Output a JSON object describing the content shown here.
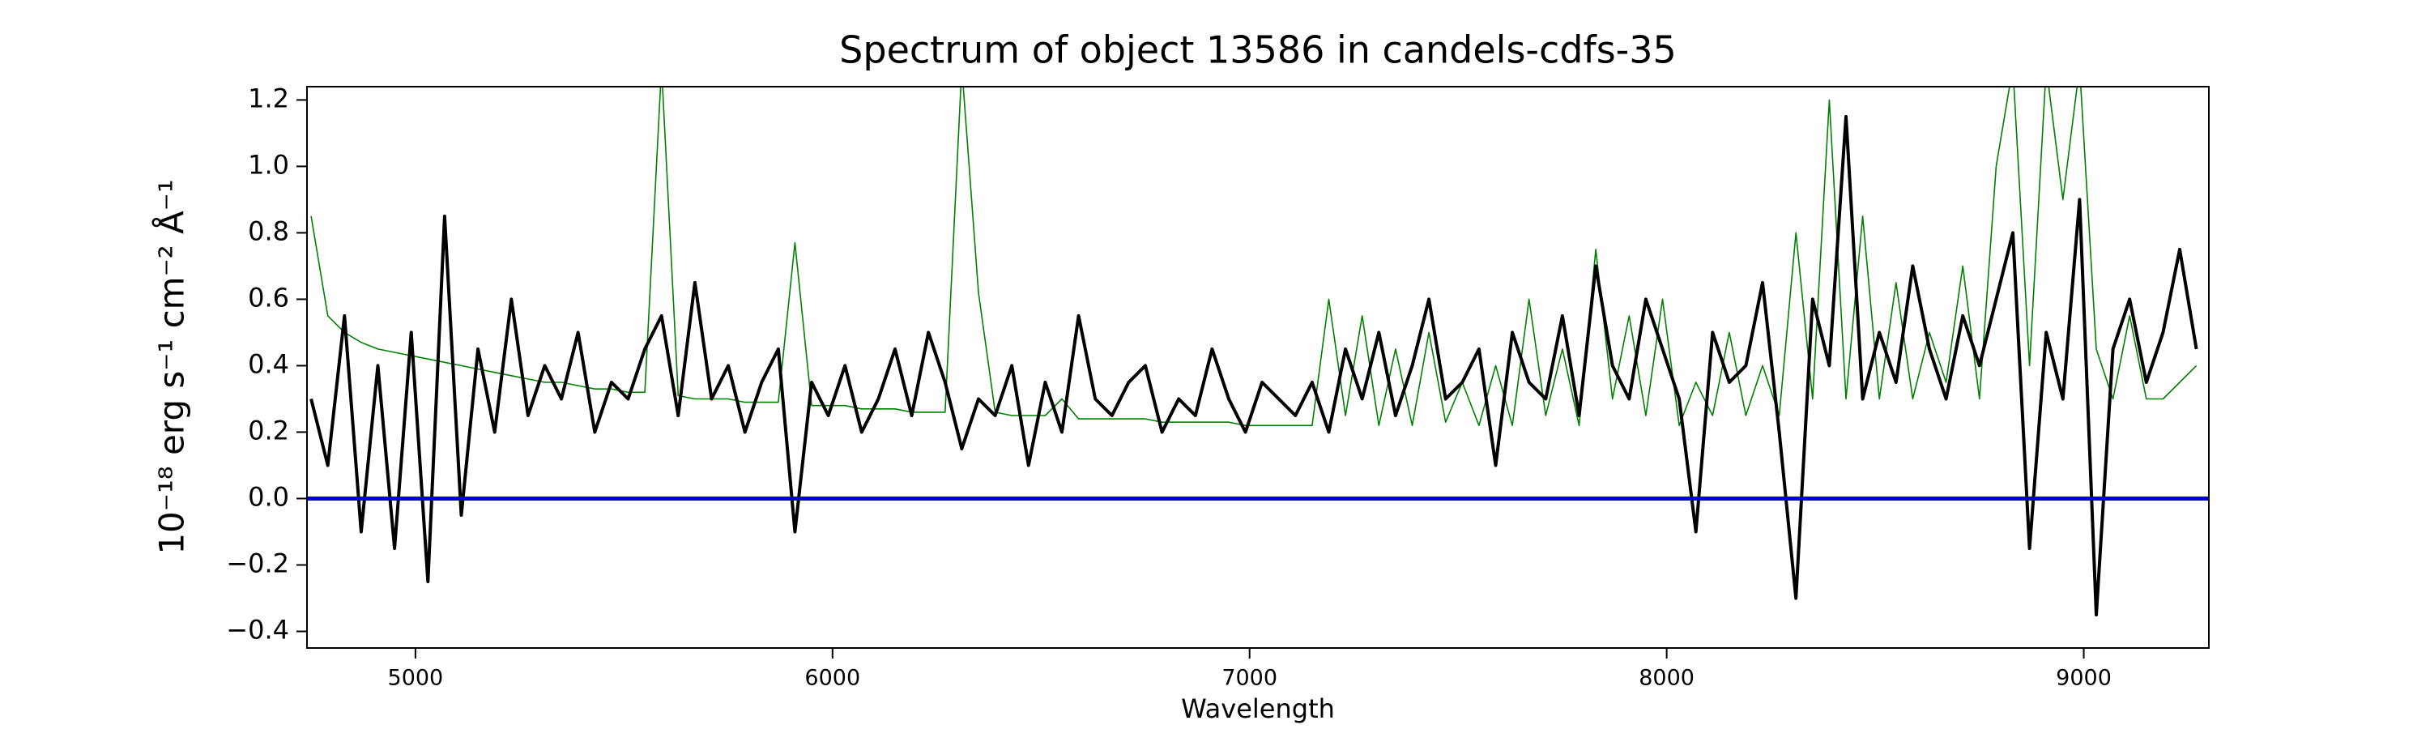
{
  "chart_data": {
    "type": "line",
    "title": "Spectrum of object 13586 in candels-cdfs-35",
    "xlabel": "Wavelength",
    "ylabel": "10⁻¹⁸ erg s⁻¹ cm⁻² Å⁻¹",
    "x": [
      4750,
      4790,
      4830,
      4870,
      4910,
      4950,
      4990,
      5030,
      5070,
      5110,
      5150,
      5190,
      5230,
      5270,
      5310,
      5350,
      5390,
      5430,
      5470,
      5510,
      5550,
      5590,
      5630,
      5670,
      5710,
      5750,
      5790,
      5830,
      5870,
      5910,
      5950,
      5990,
      6030,
      6070,
      6110,
      6150,
      6190,
      6230,
      6270,
      6310,
      6350,
      6390,
      6430,
      6470,
      6510,
      6550,
      6590,
      6630,
      6670,
      6710,
      6750,
      6790,
      6830,
      6870,
      6910,
      6950,
      6990,
      7030,
      7070,
      7110,
      7150,
      7190,
      7230,
      7270,
      7310,
      7350,
      7390,
      7430,
      7470,
      7510,
      7550,
      7590,
      7630,
      7670,
      7710,
      7750,
      7790,
      7830,
      7870,
      7910,
      7950,
      7990,
      8030,
      8070,
      8110,
      8150,
      8190,
      8230,
      8270,
      8310,
      8350,
      8390,
      8430,
      8470,
      8510,
      8550,
      8590,
      8630,
      8670,
      8710,
      8750,
      8790,
      8830,
      8870,
      8910,
      8950,
      8990,
      9030,
      9070,
      9110,
      9150,
      9190,
      9230,
      9270
    ],
    "series": [
      {
        "color": "#008000",
        "values": [
          0.85,
          0.55,
          0.5,
          0.47,
          0.45,
          0.44,
          0.43,
          0.42,
          0.41,
          0.4,
          0.39,
          0.38,
          0.37,
          0.36,
          0.35,
          0.35,
          0.34,
          0.33,
          0.33,
          0.32,
          0.32,
          1.3,
          0.31,
          0.3,
          0.3,
          0.3,
          0.29,
          0.29,
          0.29,
          0.77,
          0.28,
          0.28,
          0.28,
          0.27,
          0.27,
          0.27,
          0.26,
          0.26,
          0.26,
          1.3,
          0.62,
          0.26,
          0.25,
          0.25,
          0.25,
          0.3,
          0.24,
          0.24,
          0.24,
          0.24,
          0.24,
          0.23,
          0.23,
          0.23,
          0.23,
          0.23,
          0.22,
          0.22,
          0.22,
          0.22,
          0.22,
          0.6,
          0.25,
          0.55,
          0.22,
          0.45,
          0.22,
          0.5,
          0.23,
          0.35,
          0.22,
          0.4,
          0.22,
          0.6,
          0.25,
          0.45,
          0.22,
          0.75,
          0.3,
          0.55,
          0.25,
          0.6,
          0.22,
          0.35,
          0.25,
          0.5,
          0.25,
          0.4,
          0.25,
          0.8,
          0.3,
          1.2,
          0.3,
          0.85,
          0.3,
          0.65,
          0.3,
          0.5,
          0.35,
          0.7,
          0.3,
          1.0,
          1.3,
          0.4,
          1.3,
          0.9,
          1.3,
          0.45,
          0.3,
          0.55,
          0.3,
          0.3,
          0.35,
          0.4
        ]
      },
      {
        "color": "#000000",
        "values": [
          0.3,
          0.1,
          0.55,
          -0.1,
          0.4,
          -0.15,
          0.5,
          -0.25,
          0.85,
          -0.05,
          0.45,
          0.2,
          0.6,
          0.25,
          0.4,
          0.3,
          0.5,
          0.2,
          0.35,
          0.3,
          0.45,
          0.55,
          0.25,
          0.65,
          0.3,
          0.4,
          0.2,
          0.35,
          0.45,
          -0.1,
          0.35,
          0.25,
          0.4,
          0.2,
          0.3,
          0.45,
          0.25,
          0.5,
          0.35,
          0.15,
          0.3,
          0.25,
          0.4,
          0.1,
          0.35,
          0.2,
          0.55,
          0.3,
          0.25,
          0.35,
          0.4,
          0.2,
          0.3,
          0.25,
          0.45,
          0.3,
          0.2,
          0.35,
          0.3,
          0.25,
          0.35,
          0.2,
          0.45,
          0.3,
          0.5,
          0.25,
          0.4,
          0.6,
          0.3,
          0.35,
          0.45,
          0.1,
          0.5,
          0.35,
          0.3,
          0.55,
          0.25,
          0.7,
          0.4,
          0.3,
          0.6,
          0.45,
          0.3,
          -0.1,
          0.5,
          0.35,
          0.4,
          0.65,
          0.2,
          -0.3,
          0.6,
          0.4,
          1.15,
          0.3,
          0.5,
          0.35,
          0.7,
          0.45,
          0.3,
          0.55,
          0.4,
          0.6,
          0.8,
          -0.15,
          0.5,
          0.3,
          0.9,
          -0.35,
          0.45,
          0.6,
          0.35,
          0.5,
          0.75,
          0.45
        ]
      }
    ],
    "hline": {
      "value": 0,
      "color": "#0000cc"
    },
    "xlim": [
      4740,
      9300
    ],
    "xticks": [
      5000,
      6000,
      7000,
      8000,
      9000
    ],
    "ylim": [
      -0.45,
      1.24
    ],
    "yticks": [
      {
        "value": -0.4,
        "label": "−0.4"
      },
      {
        "value": -0.2,
        "label": "−0.2"
      },
      {
        "value": 0,
        "label": "0.0"
      },
      0.2,
      0.4,
      0.6,
      0.8,
      {
        "value": 1,
        "label": "1.0"
      },
      1.2
    ]
  }
}
